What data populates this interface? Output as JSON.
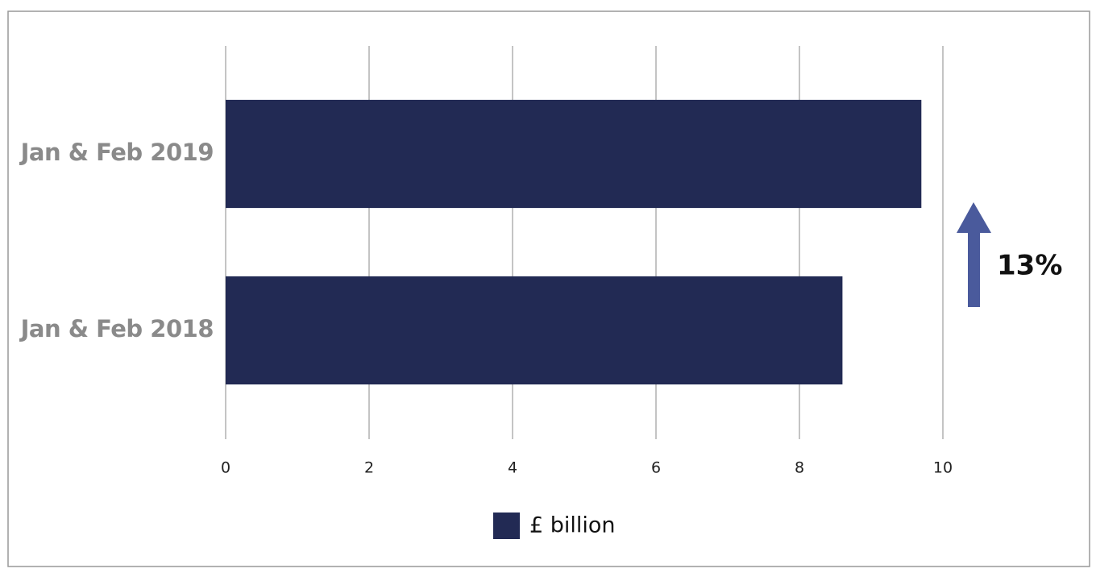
{
  "chart_data": {
    "type": "hbar",
    "categories": [
      "Jan & Feb 2019",
      "Jan & Feb 2018"
    ],
    "series": [
      {
        "name": "£ billion",
        "color": "#222a54",
        "values": [
          9.7,
          8.6
        ]
      }
    ],
    "xlim": [
      0,
      10
    ],
    "xticks": [
      0,
      2,
      4,
      6,
      8,
      10
    ],
    "grid": true,
    "annotation": "13%",
    "legend": "bottom"
  }
}
